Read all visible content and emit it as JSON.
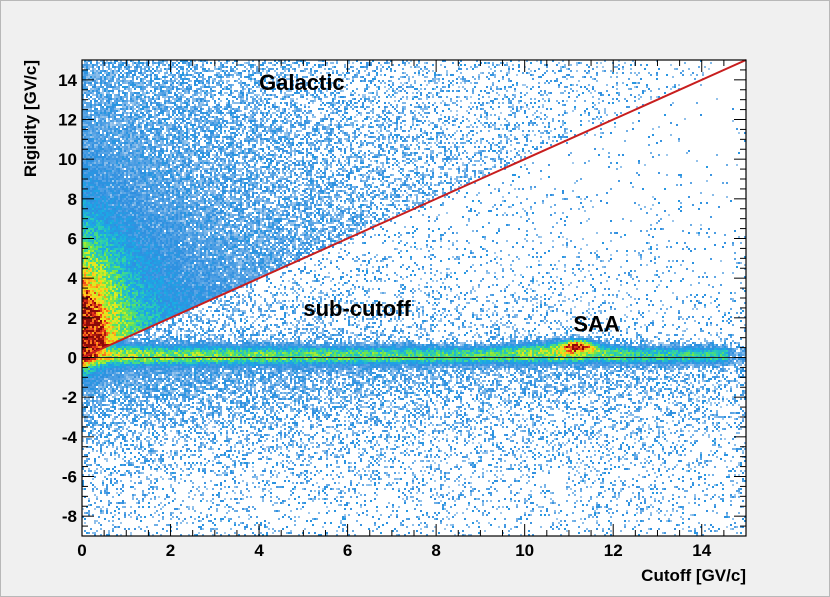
{
  "chart_data": {
    "type": "heatmap",
    "title": "",
    "xlabel": "Cutoff [GV/c]",
    "ylabel": "Rigidity [GV/c]",
    "xlim": [
      0,
      15
    ],
    "ylim": [
      -9,
      15
    ],
    "x_ticks": [
      0,
      2,
      4,
      6,
      8,
      10,
      12,
      14
    ],
    "y_ticks": [
      -8,
      -6,
      -4,
      -2,
      0,
      2,
      4,
      6,
      8,
      10,
      12,
      14
    ],
    "annotations": [
      {
        "text": "Galactic",
        "x": 4.0,
        "y": 13.5
      },
      {
        "text": "sub-cutoff",
        "x": 5.0,
        "y": 2.1
      },
      {
        "text": "SAA",
        "x": 11.1,
        "y": 1.3
      }
    ],
    "line": {
      "color": "#c81e1e",
      "points": [
        [
          0,
          0
        ],
        [
          15,
          15
        ]
      ]
    },
    "zero_line_y": 0,
    "grid": false,
    "legend": "none",
    "colors": {
      "background": "#f0f0f0",
      "frame_bg": "#ffffff",
      "scale": [
        "#ffffff",
        "#cfe3f5",
        "#7fb7e8",
        "#2f8fe0",
        "#1aa9e6",
        "#2fd3a8",
        "#6ee54a",
        "#d8ee22",
        "#ffd21a",
        "#ff8c1a",
        "#e8301a",
        "#8a0a0a"
      ]
    }
  }
}
